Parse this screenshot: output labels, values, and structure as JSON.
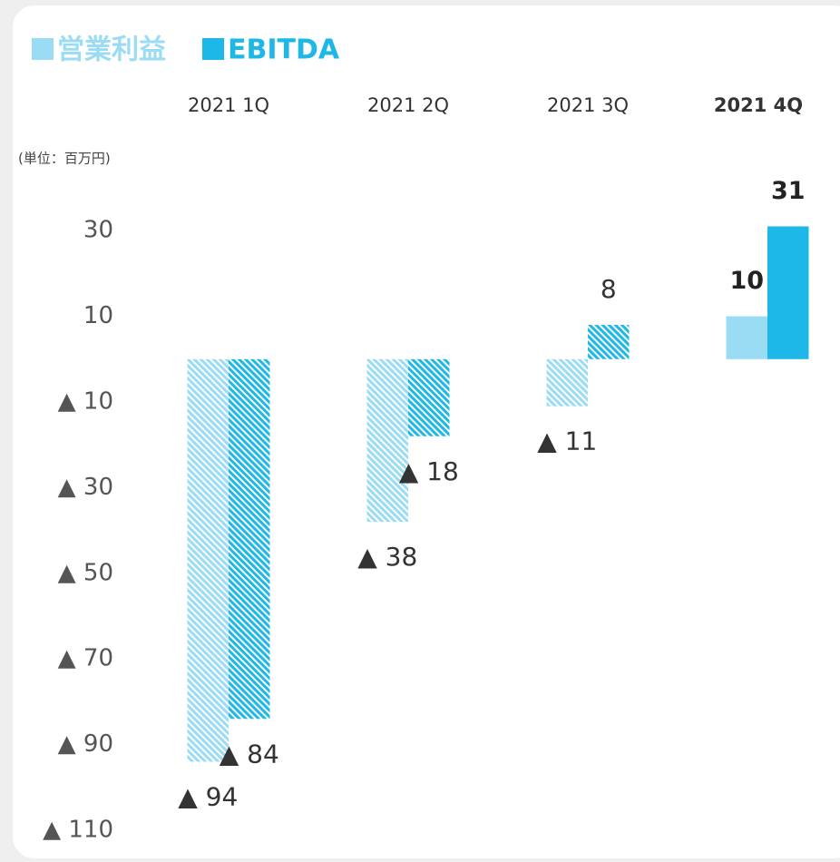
{
  "chart_data": {
    "type": "bar",
    "legend_title": null,
    "unit": "(単位：百万円)",
    "categories": [
      "2021 1Q",
      "2021 2Q",
      "2021 3Q",
      "2021 4Q"
    ],
    "hatched": [
      true,
      true,
      true,
      false
    ],
    "series": [
      {
        "name": "営業利益",
        "color": "#9adcf3",
        "values": [
          -94,
          -38,
          -11,
          10
        ],
        "value_labels": [
          "▲ 94",
          "▲ 38",
          "▲ 11",
          "10"
        ]
      },
      {
        "name": "EBITDA",
        "color": "#1eb8e8",
        "values": [
          -84,
          -18,
          8,
          31
        ],
        "value_labels": [
          "▲ 84",
          "▲ 18",
          "8",
          "31"
        ]
      }
    ],
    "ylim": [
      -110,
      40
    ],
    "yticks": [
      30,
      10,
      {
        "value": -10,
        "label": "▲ 10"
      },
      {
        "value": -30,
        "label": "▲ 30"
      },
      {
        "value": -50,
        "label": "▲ 50"
      },
      {
        "value": -70,
        "label": "▲ 70"
      },
      {
        "value": -90,
        "label": "▲ 90"
      },
      {
        "value": -110,
        "label": "▲ 110"
      }
    ],
    "grid": false
  }
}
